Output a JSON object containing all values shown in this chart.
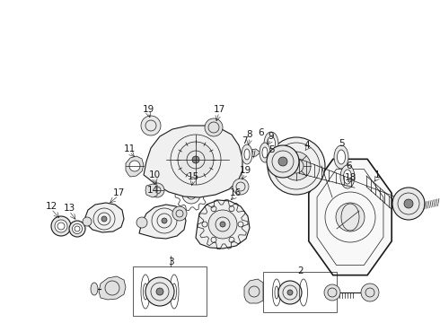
{
  "bg_color": "#ffffff",
  "line_color": "#1a1a1a",
  "fig_width": 4.9,
  "fig_height": 3.6,
  "dpi": 100,
  "font_size_label": 7.5
}
